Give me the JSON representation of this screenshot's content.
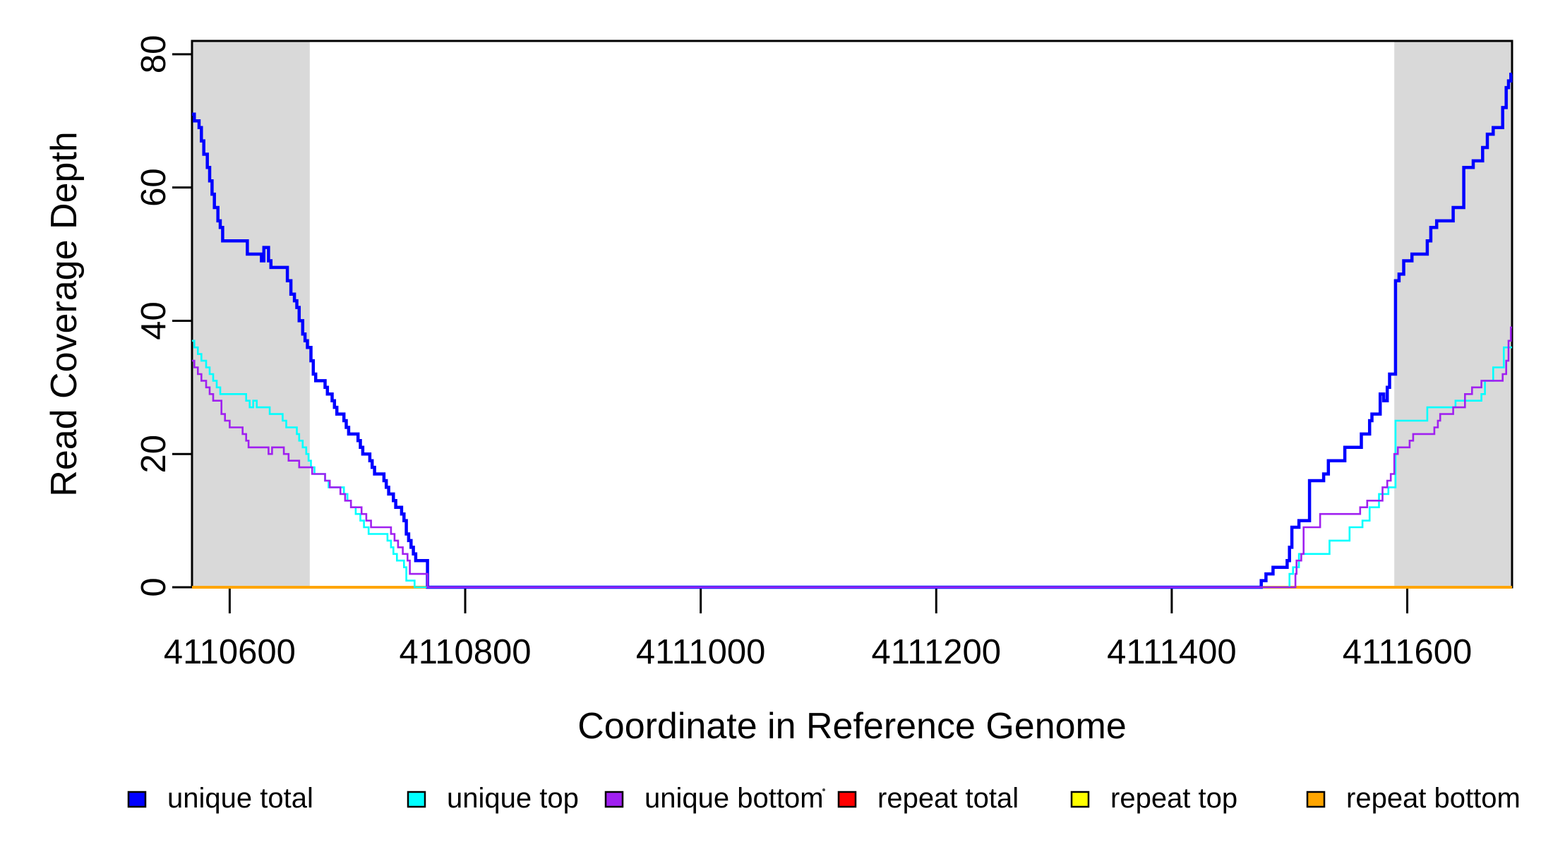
{
  "chart_data": {
    "type": "line",
    "step": true,
    "title": "",
    "xlabel": "Coordinate in Reference Genome",
    "ylabel": "Read Coverage Depth",
    "xlim": [
      4110568,
      4111689
    ],
    "ylim": [
      0,
      82
    ],
    "grid": false,
    "legend_position": "bottom-horizontal",
    "background": "#ffffff",
    "plot_border_color": "#000000",
    "x_ticks": [
      {
        "value": 4110600,
        "label": "4110600"
      },
      {
        "value": 4110800,
        "label": "4110800"
      },
      {
        "value": 4111000,
        "label": "4111000"
      },
      {
        "value": 4111200,
        "label": "4111200"
      },
      {
        "value": 4111400,
        "label": "4111400"
      },
      {
        "value": 4111600,
        "label": "4111600"
      }
    ],
    "y_ticks": [
      {
        "value": 0,
        "label": "0"
      },
      {
        "value": 20,
        "label": "20"
      },
      {
        "value": 40,
        "label": "40"
      },
      {
        "value": 60,
        "label": "60"
      },
      {
        "value": 80,
        "label": "80"
      }
    ],
    "shaded_regions": [
      {
        "x0": 4110568,
        "x1": 4110668,
        "color": "#D9D9D9"
      },
      {
        "x0": 4111589,
        "x1": 4111689,
        "color": "#D9D9D9"
      }
    ],
    "series": [
      {
        "name": "unique total",
        "color": "#0000FF",
        "lwd": 4.5,
        "points": [
          [
            4110568,
            71
          ],
          [
            4110570,
            70
          ],
          [
            4110574,
            69
          ],
          [
            4110576,
            67
          ],
          [
            4110578,
            65
          ],
          [
            4110581,
            63
          ],
          [
            4110583,
            61
          ],
          [
            4110585,
            59
          ],
          [
            4110587,
            57
          ],
          [
            4110590,
            55
          ],
          [
            4110592,
            54
          ],
          [
            4110594,
            52
          ],
          [
            4110615,
            50
          ],
          [
            4110627,
            49
          ],
          [
            4110629,
            51
          ],
          [
            4110633,
            49
          ],
          [
            4110635,
            48
          ],
          [
            4110649,
            46
          ],
          [
            4110652,
            44
          ],
          [
            4110655,
            43
          ],
          [
            4110657,
            42
          ],
          [
            4110659,
            40
          ],
          [
            4110662,
            38
          ],
          [
            4110664,
            37
          ],
          [
            4110666,
            36
          ],
          [
            4110669,
            34
          ],
          [
            4110671,
            32
          ],
          [
            4110673,
            31
          ],
          [
            4110681,
            30
          ],
          [
            4110683,
            29
          ],
          [
            4110687,
            28
          ],
          [
            4110689,
            27
          ],
          [
            4110691,
            26
          ],
          [
            4110697,
            25
          ],
          [
            4110699,
            24
          ],
          [
            4110701,
            23
          ],
          [
            4110709,
            22
          ],
          [
            4110711,
            21
          ],
          [
            4110713,
            20
          ],
          [
            4110719,
            19
          ],
          [
            4110721,
            18
          ],
          [
            4110723,
            17
          ],
          [
            4110731,
            16
          ],
          [
            4110733,
            15
          ],
          [
            4110735,
            14
          ],
          [
            4110739,
            13
          ],
          [
            4110741,
            12
          ],
          [
            4110746,
            11
          ],
          [
            4110748,
            10
          ],
          [
            4110750,
            8
          ],
          [
            4110752,
            7
          ],
          [
            4110754,
            6
          ],
          [
            4110756,
            5
          ],
          [
            4110758,
            4
          ],
          [
            4110768,
            0
          ],
          [
            4111476,
            1
          ],
          [
            4111480,
            2
          ],
          [
            4111486,
            3
          ],
          [
            4111498,
            4
          ],
          [
            4111500,
            6
          ],
          [
            4111502,
            9
          ],
          [
            4111508,
            10
          ],
          [
            4111517,
            16
          ],
          [
            4111529,
            17
          ],
          [
            4111533,
            19
          ],
          [
            4111547,
            21
          ],
          [
            4111561,
            23
          ],
          [
            4111568,
            25
          ],
          [
            4111570,
            26
          ],
          [
            4111577,
            29
          ],
          [
            4111580,
            28
          ],
          [
            4111583,
            30
          ],
          [
            4111585,
            32
          ],
          [
            4111590,
            46
          ],
          [
            4111593,
            47
          ],
          [
            4111597,
            49
          ],
          [
            4111604,
            50
          ],
          [
            4111617,
            52
          ],
          [
            4111620,
            54
          ],
          [
            4111625,
            55
          ],
          [
            4111639,
            57
          ],
          [
            4111648,
            63
          ],
          [
            4111656,
            64
          ],
          [
            4111664,
            66
          ],
          [
            4111668,
            68
          ],
          [
            4111673,
            69
          ],
          [
            4111681,
            72
          ],
          [
            4111684,
            75
          ],
          [
            4111686,
            76
          ],
          [
            4111688,
            77
          ]
        ]
      },
      {
        "name": "unique top",
        "color": "#00FFFF",
        "lwd": 2.6,
        "points": [
          [
            4110568,
            37
          ],
          [
            4110570,
            36
          ],
          [
            4110573,
            35
          ],
          [
            4110576,
            34
          ],
          [
            4110580,
            33
          ],
          [
            4110583,
            32
          ],
          [
            4110586,
            31
          ],
          [
            4110589,
            30
          ],
          [
            4110592,
            29
          ],
          [
            4110614,
            28
          ],
          [
            4110617,
            27
          ],
          [
            4110620,
            28
          ],
          [
            4110623,
            27
          ],
          [
            4110634,
            26
          ],
          [
            4110645,
            25
          ],
          [
            4110648,
            24
          ],
          [
            4110657,
            23
          ],
          [
            4110659,
            22
          ],
          [
            4110662,
            21
          ],
          [
            4110665,
            20
          ],
          [
            4110667,
            19
          ],
          [
            4110669,
            18
          ],
          [
            4110672,
            17
          ],
          [
            4110681,
            16
          ],
          [
            4110684,
            15
          ],
          [
            4110697,
            14
          ],
          [
            4110700,
            13
          ],
          [
            4110703,
            12
          ],
          [
            4110707,
            11
          ],
          [
            4110711,
            10
          ],
          [
            4110714,
            9
          ],
          [
            4110718,
            8
          ],
          [
            4110734,
            7
          ],
          [
            4110737,
            6
          ],
          [
            4110739,
            5
          ],
          [
            4110742,
            4
          ],
          [
            4110748,
            3
          ],
          [
            4110750,
            1
          ],
          [
            4110757,
            0
          ],
          [
            4111500,
            2
          ],
          [
            4111503,
            3
          ],
          [
            4111508,
            5
          ],
          [
            4111534,
            7
          ],
          [
            4111551,
            9
          ],
          [
            4111562,
            10
          ],
          [
            4111568,
            12
          ],
          [
            4111576,
            14
          ],
          [
            4111584,
            15
          ],
          [
            4111590,
            25
          ],
          [
            4111617,
            27
          ],
          [
            4111641,
            28
          ],
          [
            4111663,
            29
          ],
          [
            4111666,
            31
          ],
          [
            4111673,
            33
          ],
          [
            4111682,
            36
          ]
        ]
      },
      {
        "name": "unique bottom",
        "color": "#A020F0",
        "lwd": 2.6,
        "points": [
          [
            4110568,
            34
          ],
          [
            4110570,
            33
          ],
          [
            4110573,
            32
          ],
          [
            4110576,
            31
          ],
          [
            4110580,
            30
          ],
          [
            4110583,
            29
          ],
          [
            4110586,
            28
          ],
          [
            4110593,
            26
          ],
          [
            4110596,
            25
          ],
          [
            4110600,
            24
          ],
          [
            4110611,
            23
          ],
          [
            4110614,
            22
          ],
          [
            4110616,
            21
          ],
          [
            4110633,
            20
          ],
          [
            4110636,
            21
          ],
          [
            4110646,
            20
          ],
          [
            4110650,
            19
          ],
          [
            4110659,
            18
          ],
          [
            4110670,
            17
          ],
          [
            4110681,
            16
          ],
          [
            4110685,
            15
          ],
          [
            4110694,
            14
          ],
          [
            4110698,
            13
          ],
          [
            4110703,
            12
          ],
          [
            4110712,
            11
          ],
          [
            4110716,
            10
          ],
          [
            4110720,
            9
          ],
          [
            4110737,
            8
          ],
          [
            4110740,
            7
          ],
          [
            4110743,
            6
          ],
          [
            4110747,
            5
          ],
          [
            4110751,
            4
          ],
          [
            4110753,
            2
          ],
          [
            4110768,
            0
          ],
          [
            4111505,
            2
          ],
          [
            4111506,
            4
          ],
          [
            4111510,
            5
          ],
          [
            4111512,
            9
          ],
          [
            4111526,
            11
          ],
          [
            4111560,
            12
          ],
          [
            4111566,
            13
          ],
          [
            4111579,
            15
          ],
          [
            4111583,
            16
          ],
          [
            4111586,
            17
          ],
          [
            4111589,
            20
          ],
          [
            4111592,
            21
          ],
          [
            4111602,
            22
          ],
          [
            4111605,
            23
          ],
          [
            4111623,
            24
          ],
          [
            4111626,
            25
          ],
          [
            4111628,
            26
          ],
          [
            4111639,
            27
          ],
          [
            4111649,
            29
          ],
          [
            4111655,
            30
          ],
          [
            4111663,
            31
          ],
          [
            4111681,
            32
          ],
          [
            4111684,
            34
          ],
          [
            4111686,
            37
          ],
          [
            4111688,
            39
          ]
        ]
      },
      {
        "name": "repeat total",
        "color": "#FF0000",
        "lwd": 2.6,
        "points": [
          [
            4110568,
            0
          ]
        ]
      },
      {
        "name": "repeat top",
        "color": "#FFFF00",
        "lwd": 2.6,
        "points": [
          [
            4110568,
            0
          ]
        ]
      },
      {
        "name": "repeat bottom",
        "color": "#FFA500",
        "lwd": 4,
        "points": [
          [
            4110568,
            0
          ]
        ]
      }
    ]
  }
}
